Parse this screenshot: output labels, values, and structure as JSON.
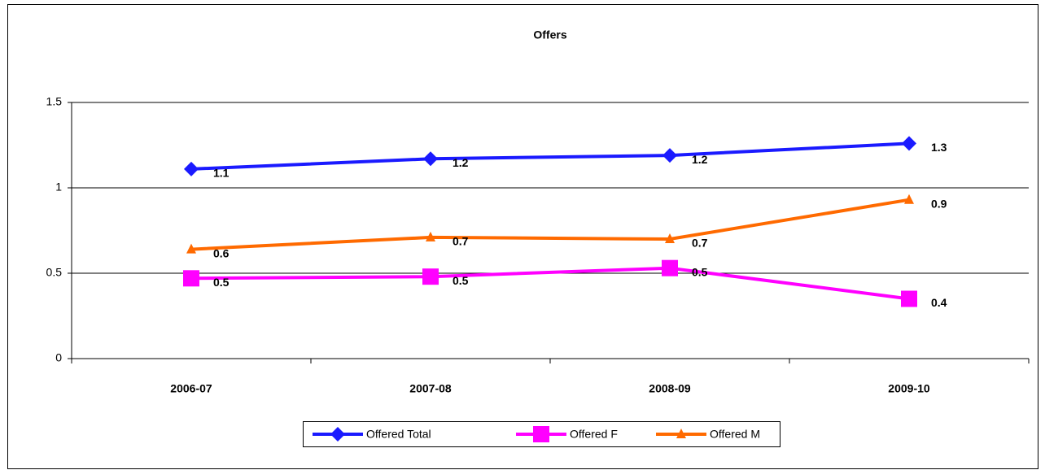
{
  "chart_data": {
    "type": "line",
    "title": "Offers",
    "categories": [
      "2006-07",
      "2007-08",
      "2008-09",
      "2009-10"
    ],
    "series": [
      {
        "name": "Offered Total",
        "color": "#1a1aff",
        "marker": "diamond",
        "values": [
          1.11,
          1.17,
          1.19,
          1.26
        ],
        "value_labels": [
          "1.1",
          "1.2",
          "1.2",
          "1.3"
        ]
      },
      {
        "name": "Offered F",
        "color": "#ff00ff",
        "marker": "square",
        "values": [
          0.47,
          0.48,
          0.53,
          0.35
        ],
        "value_labels": [
          "0.5",
          "0.5",
          "0.5",
          "0.4"
        ]
      },
      {
        "name": "Offered M",
        "color": "#ff6a00",
        "marker": "triangle",
        "values": [
          0.64,
          0.71,
          0.7,
          0.93
        ],
        "value_labels": [
          "0.6",
          "0.7",
          "0.7",
          "0.9"
        ]
      }
    ],
    "ylim": [
      0,
      1.5
    ],
    "yticks": [
      0,
      0.5,
      1,
      1.5
    ],
    "grid": true,
    "legend": "bottom"
  }
}
